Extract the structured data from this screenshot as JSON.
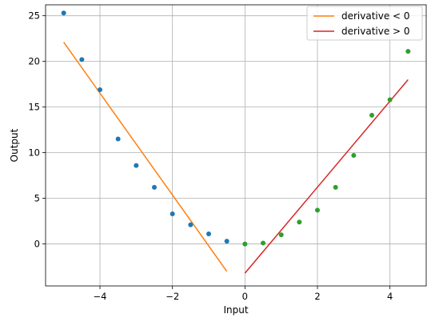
{
  "chart_data": {
    "type": "scatter",
    "xlabel": "Input",
    "ylabel": "Output",
    "xlim": [
      -5.5,
      5.0
    ],
    "ylim": [
      -4.6,
      26.2
    ],
    "grid": true,
    "legend_position": "top-right",
    "x_ticks": [
      -4,
      -2,
      0,
      2,
      4
    ],
    "x_tick_labels": [
      "−4",
      "−2",
      "0",
      "2",
      "4"
    ],
    "y_ticks": [
      0,
      5,
      10,
      15,
      20,
      25
    ],
    "y_tick_labels": [
      "0",
      "5",
      "10",
      "15",
      "20",
      "25"
    ],
    "scatter_series": [
      {
        "color": "#1f77b4",
        "points": [
          [
            -5.0,
            25.3
          ],
          [
            -4.5,
            20.2
          ],
          [
            -4.0,
            16.9
          ],
          [
            -3.5,
            11.5
          ],
          [
            -3.0,
            8.6
          ],
          [
            -2.5,
            6.2
          ],
          [
            -2.0,
            3.3
          ],
          [
            -1.5,
            2.1
          ],
          [
            -1.0,
            1.1
          ],
          [
            -0.5,
            0.3
          ]
        ]
      },
      {
        "color": "#2ca02c",
        "points": [
          [
            0.0,
            0.0
          ],
          [
            0.5,
            0.1
          ],
          [
            1.0,
            1.0
          ],
          [
            1.5,
            2.4
          ],
          [
            2.0,
            3.7
          ],
          [
            2.5,
            6.2
          ],
          [
            3.0,
            9.7
          ],
          [
            3.5,
            14.1
          ],
          [
            4.0,
            15.8
          ],
          [
            4.5,
            21.1
          ]
        ]
      }
    ],
    "line_series": [
      {
        "name": "derivative < 0",
        "color": "#ff7f0e",
        "x": [
          -5.0,
          -0.5
        ],
        "y": [
          22.1,
          -3.0
        ]
      },
      {
        "name": "derivative > 0",
        "color": "#d62728",
        "x": [
          0.0,
          4.5
        ],
        "y": [
          -3.2,
          18.0
        ]
      }
    ]
  }
}
